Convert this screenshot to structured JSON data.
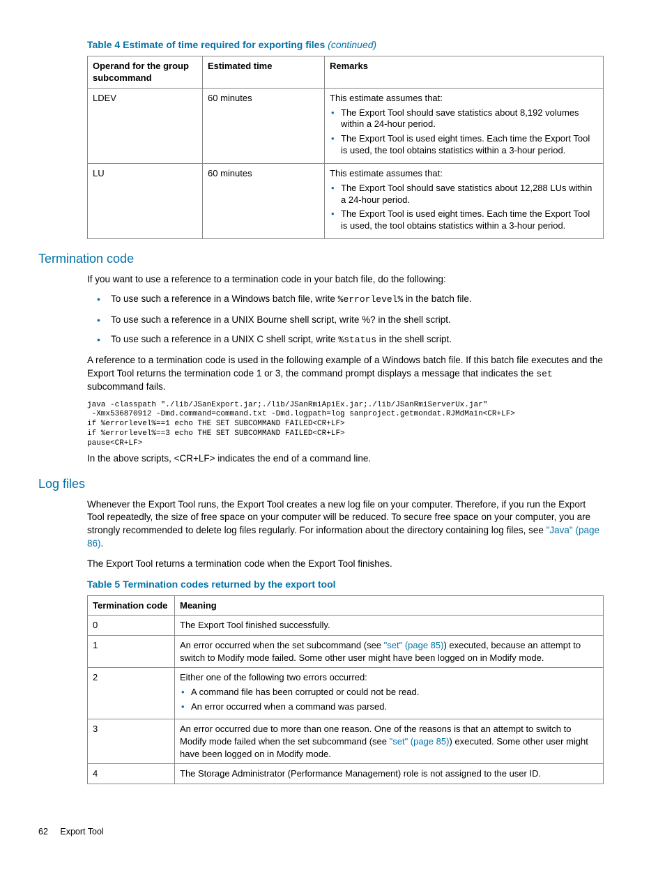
{
  "table4": {
    "caption_main": "Table 4 Estimate of time required for exporting files",
    "caption_cont": "(continued)",
    "headers": {
      "c0": "Operand for the group subcommand",
      "c1": "Estimated time",
      "c2": "Remarks"
    },
    "rows": [
      {
        "c0": "LDEV",
        "c1": "60 minutes",
        "lead": "This estimate assumes that:",
        "b0": "The Export Tool should save statistics about 8,192 volumes within a 24-hour period.",
        "b1": "The Export Tool is used eight times. Each time the Export Tool is used, the tool obtains statistics within a 3-hour period."
      },
      {
        "c0": "LU",
        "c1": "60 minutes",
        "lead": "This estimate assumes that:",
        "b0": "The Export Tool should save statistics about 12,288 LUs within a 24-hour period.",
        "b1": "The Export Tool is used eight times. Each time the Export Tool is used, the tool obtains statistics within a 3-hour period."
      }
    ]
  },
  "termination": {
    "heading": "Termination code",
    "intro": "If you want to use a reference to a termination code in your batch file, do the following:",
    "items": {
      "i0_pre": "To use such a reference in a Windows batch file, write ",
      "i0_code": "%errorlevel%",
      "i0_post": " in the batch file.",
      "i1": "To use such a reference in a UNIX Bourne shell script, write %? in the shell script.",
      "i2_pre": "To use such a reference in a UNIX C shell script, write ",
      "i2_code": "%status",
      "i2_post": " in the shell script."
    },
    "para_pre": "A reference to a termination code is used in the following example of a Windows batch file. If this batch file executes and the Export Tool returns the termination code 1 or 3, the command prompt displays a message that indicates the ",
    "para_code": "set",
    "para_post": " subcommand fails.",
    "code": "java -classpath \"./lib/JSanExport.jar;./lib/JSanRmiApiEx.jar;./lib/JSanRmiServerUx.jar\"\n -Xmx536870912 -Dmd.command=command.txt -Dmd.logpath=log sanproject.getmondat.RJMdMain<CR+LF>\nif %errorlevel%==1 echo THE SET SUBCOMMAND FAILED<CR+LF>\nif %errorlevel%==3 echo THE SET SUBCOMMAND FAILED<CR+LF>\npause<CR+LF>",
    "after_code": "In the above scripts, <CR+LF> indicates the end of a command line."
  },
  "logfiles": {
    "heading": "Log files",
    "p1_pre": "Whenever the Export Tool runs, the Export Tool creates a new log file on your computer. Therefore, if you run the Export Tool repeatedly, the size of free space on your computer will be reduced. To secure free space on your computer, you are strongly recommended to delete log files regularly. For information about the directory containing log files, see ",
    "p1_link": "\"Java\" (page 86)",
    "p1_post": ".",
    "p2": "The Export Tool returns a termination code when the Export Tool finishes."
  },
  "table5": {
    "caption": "Table 5 Termination codes returned by the export tool",
    "headers": {
      "c0": "Termination code",
      "c1": "Meaning"
    },
    "rows": {
      "r0": {
        "c0": "0",
        "c1": "The Export Tool finished successfully."
      },
      "r1": {
        "c0": "1",
        "pre": "An error occurred when the set subcommand (see ",
        "link": "\"set\" (page 85)",
        "post": ") executed, because an attempt to switch to Modify mode failed. Some other user might have been logged on in Modify mode."
      },
      "r2": {
        "c0": "2",
        "lead": "Either one of the following two errors occurred:",
        "b0": "A command file has been corrupted or could not be read.",
        "b1": "An error occurred when a command was parsed."
      },
      "r3": {
        "c0": "3",
        "pre": "An error occurred due to more than one reason. One of the reasons is that an attempt to switch to Modify mode failed when the set subcommand (see ",
        "link": "\"set\" (page 85)",
        "post": ") executed. Some other user might have been logged on in Modify mode."
      },
      "r4": {
        "c0": "4",
        "c1": "The Storage Administrator (Performance Management) role is not assigned to the user ID."
      }
    }
  },
  "footer": {
    "page": "62",
    "section": "Export Tool"
  }
}
